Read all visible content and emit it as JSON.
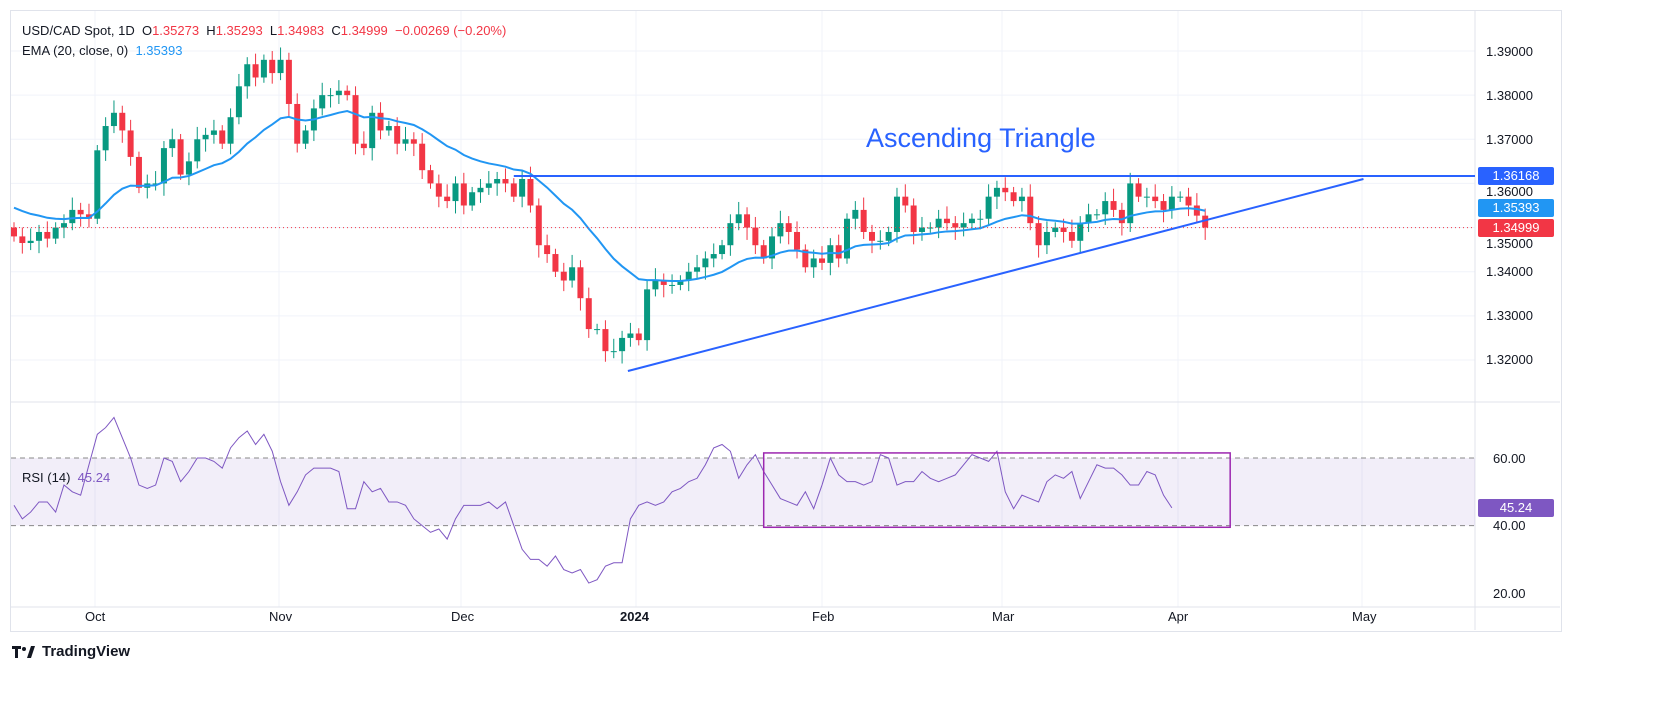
{
  "header": {
    "symbol": "USD/CAD Spot, 1D",
    "open_label": "O",
    "open": "1.35273",
    "high_label": "H",
    "high": "1.35293",
    "low_label": "L",
    "low": "1.34983",
    "close_label": "C",
    "close": "1.34999",
    "change": "−0.00269 (−0.20%)",
    "ema_label": "EMA (20, close, 0)",
    "ema_value": "1.35393",
    "rsi_label": "RSI (14)",
    "rsi_value": "45.24"
  },
  "annotation": "Ascending Triangle",
  "price_tags": {
    "resistance": "1.36168",
    "ema": "1.35393",
    "last": "1.34999",
    "rsi": "45.24"
  },
  "colors": {
    "up": "#089981",
    "down": "#f23645",
    "ema": "#2196f3",
    "trend": "#2962ff",
    "rsi": "#7e57c2"
  },
  "footer": {
    "brand": "TradingView"
  },
  "chart_data": {
    "type": "candlestick",
    "title": "USD/CAD Spot, 1D",
    "price_ticks": [
      "1.39000",
      "1.38000",
      "1.37000",
      "1.36000",
      "1.35000",
      "1.34000",
      "1.33000",
      "1.32000"
    ],
    "price_range": [
      1.3135,
      1.3985
    ],
    "x_ticks": [
      "Oct",
      "Nov",
      "Dec",
      "2024",
      "Feb",
      "Mar",
      "Apr",
      "May"
    ],
    "ema_start": 1.3545,
    "closes": [
      1.348,
      1.3465,
      1.347,
      1.349,
      1.3475,
      1.35,
      1.351,
      1.354,
      1.353,
      1.352,
      1.3675,
      1.373,
      1.376,
      1.372,
      1.366,
      1.359,
      1.36,
      1.36,
      1.368,
      1.37,
      1.362,
      1.365,
      1.37,
      1.371,
      1.372,
      1.369,
      1.375,
      1.382,
      1.387,
      1.384,
      1.388,
      1.385,
      1.388,
      1.378,
      1.369,
      1.372,
      1.377,
      1.38,
      1.38,
      1.381,
      1.38,
      1.369,
      1.368,
      1.376,
      1.372,
      1.373,
      1.369,
      1.37,
      1.369,
      1.363,
      1.36,
      1.357,
      1.356,
      1.36,
      1.355,
      1.358,
      1.359,
      1.36,
      1.361,
      1.36,
      1.357,
      1.361,
      1.355,
      1.346,
      1.344,
      1.34,
      1.338,
      1.341,
      1.334,
      1.327,
      1.327,
      1.322,
      1.322,
      1.325,
      1.326,
      1.3245,
      1.336,
      1.338,
      1.337,
      1.337,
      1.338,
      1.34,
      1.341,
      1.343,
      1.344,
      1.346,
      1.351,
      1.353,
      1.35,
      1.346,
      1.343,
      1.348,
      1.351,
      1.349,
      1.345,
      1.341,
      1.343,
      1.342,
      1.346,
      1.343,
      1.352,
      1.354,
      1.349,
      1.347,
      1.347,
      1.349,
      1.357,
      1.355,
      1.349,
      1.35,
      1.35,
      1.352,
      1.351,
      1.35,
      1.351,
      1.352,
      1.352,
      1.357,
      1.359,
      1.358,
      1.356,
      1.357,
      1.351,
      1.346,
      1.349,
      1.35,
      1.349,
      1.347,
      1.351,
      1.353,
      1.353,
      1.356,
      1.354,
      1.351,
      1.36,
      1.357,
      1.357,
      1.356,
      1.354,
      1.357,
      1.357,
      1.355,
      1.3527,
      1.35
    ],
    "resistance": {
      "price": 1.36168,
      "from_bar": 60
    },
    "support_line": {
      "from": {
        "bar": 73.7,
        "price": 1.3175
      },
      "to": {
        "bar": 162,
        "price": 1.361
      }
    },
    "last_price": 1.34999,
    "rsi": {
      "ticks": [
        "60.00",
        "40.00",
        "20.00"
      ],
      "range": [
        16,
        77
      ],
      "band": [
        40,
        60
      ],
      "values": [
        46,
        42,
        44,
        47,
        47,
        44,
        52,
        50,
        49,
        58,
        67,
        69,
        72,
        66,
        60,
        52,
        51,
        52,
        60,
        59,
        53,
        56,
        60,
        60,
        59,
        57,
        63,
        66,
        68,
        64,
        67,
        62,
        53,
        46,
        50,
        55,
        57,
        57,
        57,
        56,
        45,
        45,
        53,
        50,
        51,
        47,
        47,
        46,
        42,
        40,
        38,
        39,
        36,
        42,
        46,
        46,
        46,
        47,
        45,
        47,
        40,
        33,
        30,
        30,
        28,
        31,
        27,
        26,
        27,
        23,
        24,
        28,
        29,
        29,
        42,
        46,
        47,
        46,
        47,
        50,
        51,
        53,
        54,
        58,
        63,
        64,
        62,
        54,
        58,
        61,
        56,
        52,
        48,
        47,
        46,
        50,
        45,
        52,
        60,
        55,
        53,
        53,
        52,
        53,
        61,
        60,
        52,
        53,
        53,
        56,
        54,
        53,
        54,
        55,
        58,
        61,
        60,
        59,
        62,
        50,
        45,
        49,
        48,
        47,
        53,
        55,
        54,
        56,
        48,
        53,
        58,
        57,
        57,
        55,
        52,
        52,
        56,
        55,
        49,
        45.24
      ],
      "highlight_box": {
        "from_bar": 90,
        "to_bar": 146,
        "top": 61.5,
        "bottom": 39.5
      }
    }
  }
}
